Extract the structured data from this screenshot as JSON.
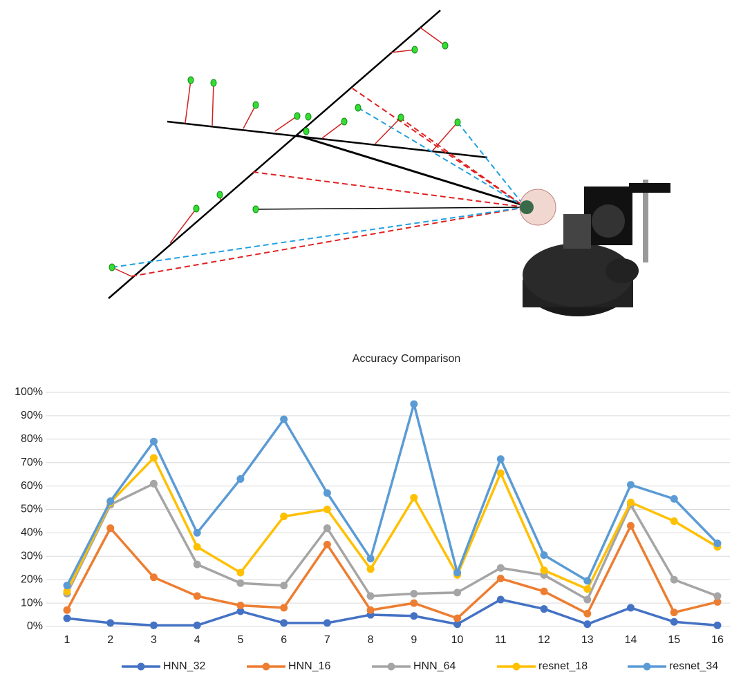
{
  "chart_data": {
    "type": "line",
    "title": "Accuracy Comparison",
    "categories": [
      "1",
      "2",
      "3",
      "4",
      "5",
      "6",
      "7",
      "8",
      "9",
      "10",
      "11",
      "12",
      "13",
      "14",
      "15",
      "16"
    ],
    "ylim": [
      0,
      100
    ],
    "yticks": [
      {
        "value": 0,
        "label": "0%"
      },
      {
        "value": 10,
        "label": "10%"
      },
      {
        "value": 20,
        "label": "20%"
      },
      {
        "value": 30,
        "label": "30%"
      },
      {
        "value": 40,
        "label": "40%"
      },
      {
        "value": 50,
        "label": "50%"
      },
      {
        "value": 60,
        "label": "60%"
      },
      {
        "value": 70,
        "label": "70%"
      },
      {
        "value": 80,
        "label": "80%"
      },
      {
        "value": 90,
        "label": "90%"
      },
      {
        "value": 100,
        "label": "100%"
      }
    ],
    "grid": true,
    "legend": "bottom",
    "series": [
      {
        "name": "HNN_32",
        "color": "#4472c4",
        "values": [
          3.5,
          1.5,
          0.5,
          0.5,
          6.5,
          1.5,
          1.5,
          5,
          4.5,
          1,
          11.5,
          7.5,
          1,
          8,
          2,
          0.5
        ]
      },
      {
        "name": "HNN_16",
        "color": "#ed7d31",
        "values": [
          7,
          42,
          21,
          13,
          9,
          8,
          35,
          7,
          10,
          3.5,
          20.5,
          15,
          5.5,
          43,
          6,
          10.5
        ]
      },
      {
        "name": "HNN_64",
        "color": "#a5a5a5",
        "values": [
          14,
          52,
          61,
          26.5,
          18.5,
          17.5,
          42,
          13,
          14,
          14.5,
          25,
          22,
          11.5,
          52,
          20,
          13
        ]
      },
      {
        "name": "resnet_18",
        "color": "#ffc000",
        "values": [
          15,
          53,
          72,
          34,
          23,
          47,
          50,
          24.5,
          55,
          22,
          65.5,
          24,
          16,
          53,
          45,
          34
        ]
      },
      {
        "name": "resnet_34",
        "color": "#5b9bd5",
        "values": [
          17.5,
          53.5,
          79,
          40,
          63,
          88.5,
          57,
          29,
          95,
          23,
          71.5,
          30.5,
          19.5,
          60.5,
          54.5,
          35.5
        ]
      }
    ]
  }
}
